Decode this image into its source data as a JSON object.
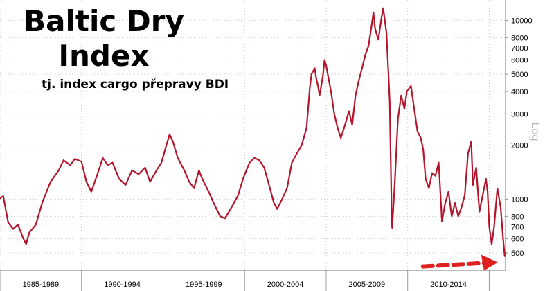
{
  "chart_data": {
    "type": "line",
    "title_line1": "Baltic Dry",
    "title_line2": "Index",
    "subtitle": "tj. index cargo přepravy BDI",
    "ylabel": "Log",
    "yscale": "log",
    "ylim": [
      400,
      13000
    ],
    "xlim": [
      1985.0,
      2016.0
    ],
    "grid": true,
    "y_ticks": [
      500,
      600,
      700,
      800,
      1000,
      2000,
      3000,
      4000,
      5000,
      6000,
      7000,
      8000,
      10000
    ],
    "y_tick_labels": [
      "500",
      "600",
      "700",
      "800",
      "1000",
      "2000",
      "3000",
      "4000",
      "5000",
      "6000",
      "7000",
      "8000",
      "10000"
    ],
    "x_periods": [
      {
        "label": "1985-1989",
        "start": 1985.0,
        "end": 1990.0
      },
      {
        "label": "1990-1994",
        "start": 1990.0,
        "end": 1995.0
      },
      {
        "label": "1995-1999",
        "start": 1995.0,
        "end": 2000.0
      },
      {
        "label": "2000-2004",
        "start": 2000.0,
        "end": 2005.0
      },
      {
        "label": "2005-2009",
        "start": 2005.0,
        "end": 2010.0
      },
      {
        "label": "2010-2014",
        "start": 2010.0,
        "end": 2015.0
      }
    ],
    "series": [
      {
        "color": "#b5152b",
        "points": [
          [
            1985.0,
            1010
          ],
          [
            1985.2,
            1040
          ],
          [
            1985.5,
            740
          ],
          [
            1985.8,
            680
          ],
          [
            1986.1,
            720
          ],
          [
            1986.4,
            610
          ],
          [
            1986.6,
            560
          ],
          [
            1986.8,
            650
          ],
          [
            1987.2,
            720
          ],
          [
            1987.6,
            960
          ],
          [
            1988.1,
            1250
          ],
          [
            1988.6,
            1450
          ],
          [
            1988.9,
            1650
          ],
          [
            1989.3,
            1550
          ],
          [
            1989.6,
            1680
          ],
          [
            1990.0,
            1620
          ],
          [
            1990.3,
            1250
          ],
          [
            1990.6,
            1100
          ],
          [
            1991.0,
            1400
          ],
          [
            1991.3,
            1700
          ],
          [
            1991.6,
            1550
          ],
          [
            1991.9,
            1600
          ],
          [
            1992.3,
            1300
          ],
          [
            1992.7,
            1200
          ],
          [
            1993.1,
            1450
          ],
          [
            1993.5,
            1380
          ],
          [
            1993.9,
            1500
          ],
          [
            1994.2,
            1250
          ],
          [
            1994.6,
            1450
          ],
          [
            1994.9,
            1600
          ],
          [
            1995.2,
            2000
          ],
          [
            1995.4,
            2300
          ],
          [
            1995.6,
            2100
          ],
          [
            1995.9,
            1700
          ],
          [
            1996.3,
            1450
          ],
          [
            1996.6,
            1250
          ],
          [
            1996.9,
            1150
          ],
          [
            1997.2,
            1450
          ],
          [
            1997.4,
            1300
          ],
          [
            1997.8,
            1100
          ],
          [
            1998.1,
            950
          ],
          [
            1998.5,
            800
          ],
          [
            1998.8,
            780
          ],
          [
            1999.2,
            900
          ],
          [
            1999.6,
            1050
          ],
          [
            1999.9,
            1300
          ],
          [
            2000.3,
            1600
          ],
          [
            2000.6,
            1700
          ],
          [
            2000.9,
            1650
          ],
          [
            2001.2,
            1500
          ],
          [
            2001.5,
            1200
          ],
          [
            2001.8,
            950
          ],
          [
            2002.0,
            880
          ],
          [
            2002.3,
            1000
          ],
          [
            2002.6,
            1150
          ],
          [
            2002.9,
            1600
          ],
          [
            2003.2,
            1800
          ],
          [
            2003.5,
            2000
          ],
          [
            2003.8,
            2500
          ],
          [
            2004.0,
            4200
          ],
          [
            2004.1,
            5000
          ],
          [
            2004.3,
            5400
          ],
          [
            2004.4,
            4700
          ],
          [
            2004.5,
            4300
          ],
          [
            2004.6,
            3800
          ],
          [
            2004.8,
            4900
          ],
          [
            2004.9,
            6000
          ],
          [
            2005.0,
            5600
          ],
          [
            2005.1,
            5000
          ],
          [
            2005.3,
            4000
          ],
          [
            2005.5,
            3000
          ],
          [
            2005.7,
            2500
          ],
          [
            2005.9,
            2200
          ],
          [
            2006.1,
            2500
          ],
          [
            2006.4,
            3100
          ],
          [
            2006.6,
            2600
          ],
          [
            2006.8,
            3800
          ],
          [
            2007.0,
            4600
          ],
          [
            2007.2,
            5400
          ],
          [
            2007.4,
            6400
          ],
          [
            2007.6,
            7200
          ],
          [
            2007.8,
            9500
          ],
          [
            2007.9,
            11100
          ],
          [
            2008.0,
            9000
          ],
          [
            2008.2,
            7800
          ],
          [
            2008.4,
            10400
          ],
          [
            2008.5,
            11700
          ],
          [
            2008.7,
            8500
          ],
          [
            2008.9,
            3500
          ],
          [
            2009.0,
            1000
          ],
          [
            2009.05,
            690
          ],
          [
            2009.2,
            1200
          ],
          [
            2009.4,
            2800
          ],
          [
            2009.6,
            3800
          ],
          [
            2009.8,
            3200
          ],
          [
            2009.95,
            4000
          ],
          [
            2010.2,
            4300
          ],
          [
            2010.4,
            3200
          ],
          [
            2010.6,
            2400
          ],
          [
            2010.8,
            2200
          ],
          [
            2010.95,
            1900
          ],
          [
            2011.1,
            1300
          ],
          [
            2011.3,
            1150
          ],
          [
            2011.5,
            1400
          ],
          [
            2011.7,
            1350
          ],
          [
            2011.9,
            1600
          ],
          [
            2012.1,
            750
          ],
          [
            2012.3,
            950
          ],
          [
            2012.5,
            1100
          ],
          [
            2012.7,
            800
          ],
          [
            2012.9,
            950
          ],
          [
            2013.1,
            800
          ],
          [
            2013.3,
            900
          ],
          [
            2013.5,
            1050
          ],
          [
            2013.7,
            1800
          ],
          [
            2013.9,
            2100
          ],
          [
            2014.0,
            1200
          ],
          [
            2014.2,
            1500
          ],
          [
            2014.4,
            850
          ],
          [
            2014.6,
            1050
          ],
          [
            2014.8,
            1300
          ],
          [
            2014.9,
            1100
          ],
          [
            2015.0,
            700
          ],
          [
            2015.15,
            560
          ],
          [
            2015.3,
            700
          ],
          [
            2015.5,
            1150
          ],
          [
            2015.7,
            900
          ],
          [
            2015.85,
            600
          ],
          [
            2015.95,
            480
          ]
        ]
      }
    ],
    "annotation": {
      "type": "arrow",
      "color": "#e02020",
      "style": "dashed",
      "points_to": "last value"
    }
  }
}
